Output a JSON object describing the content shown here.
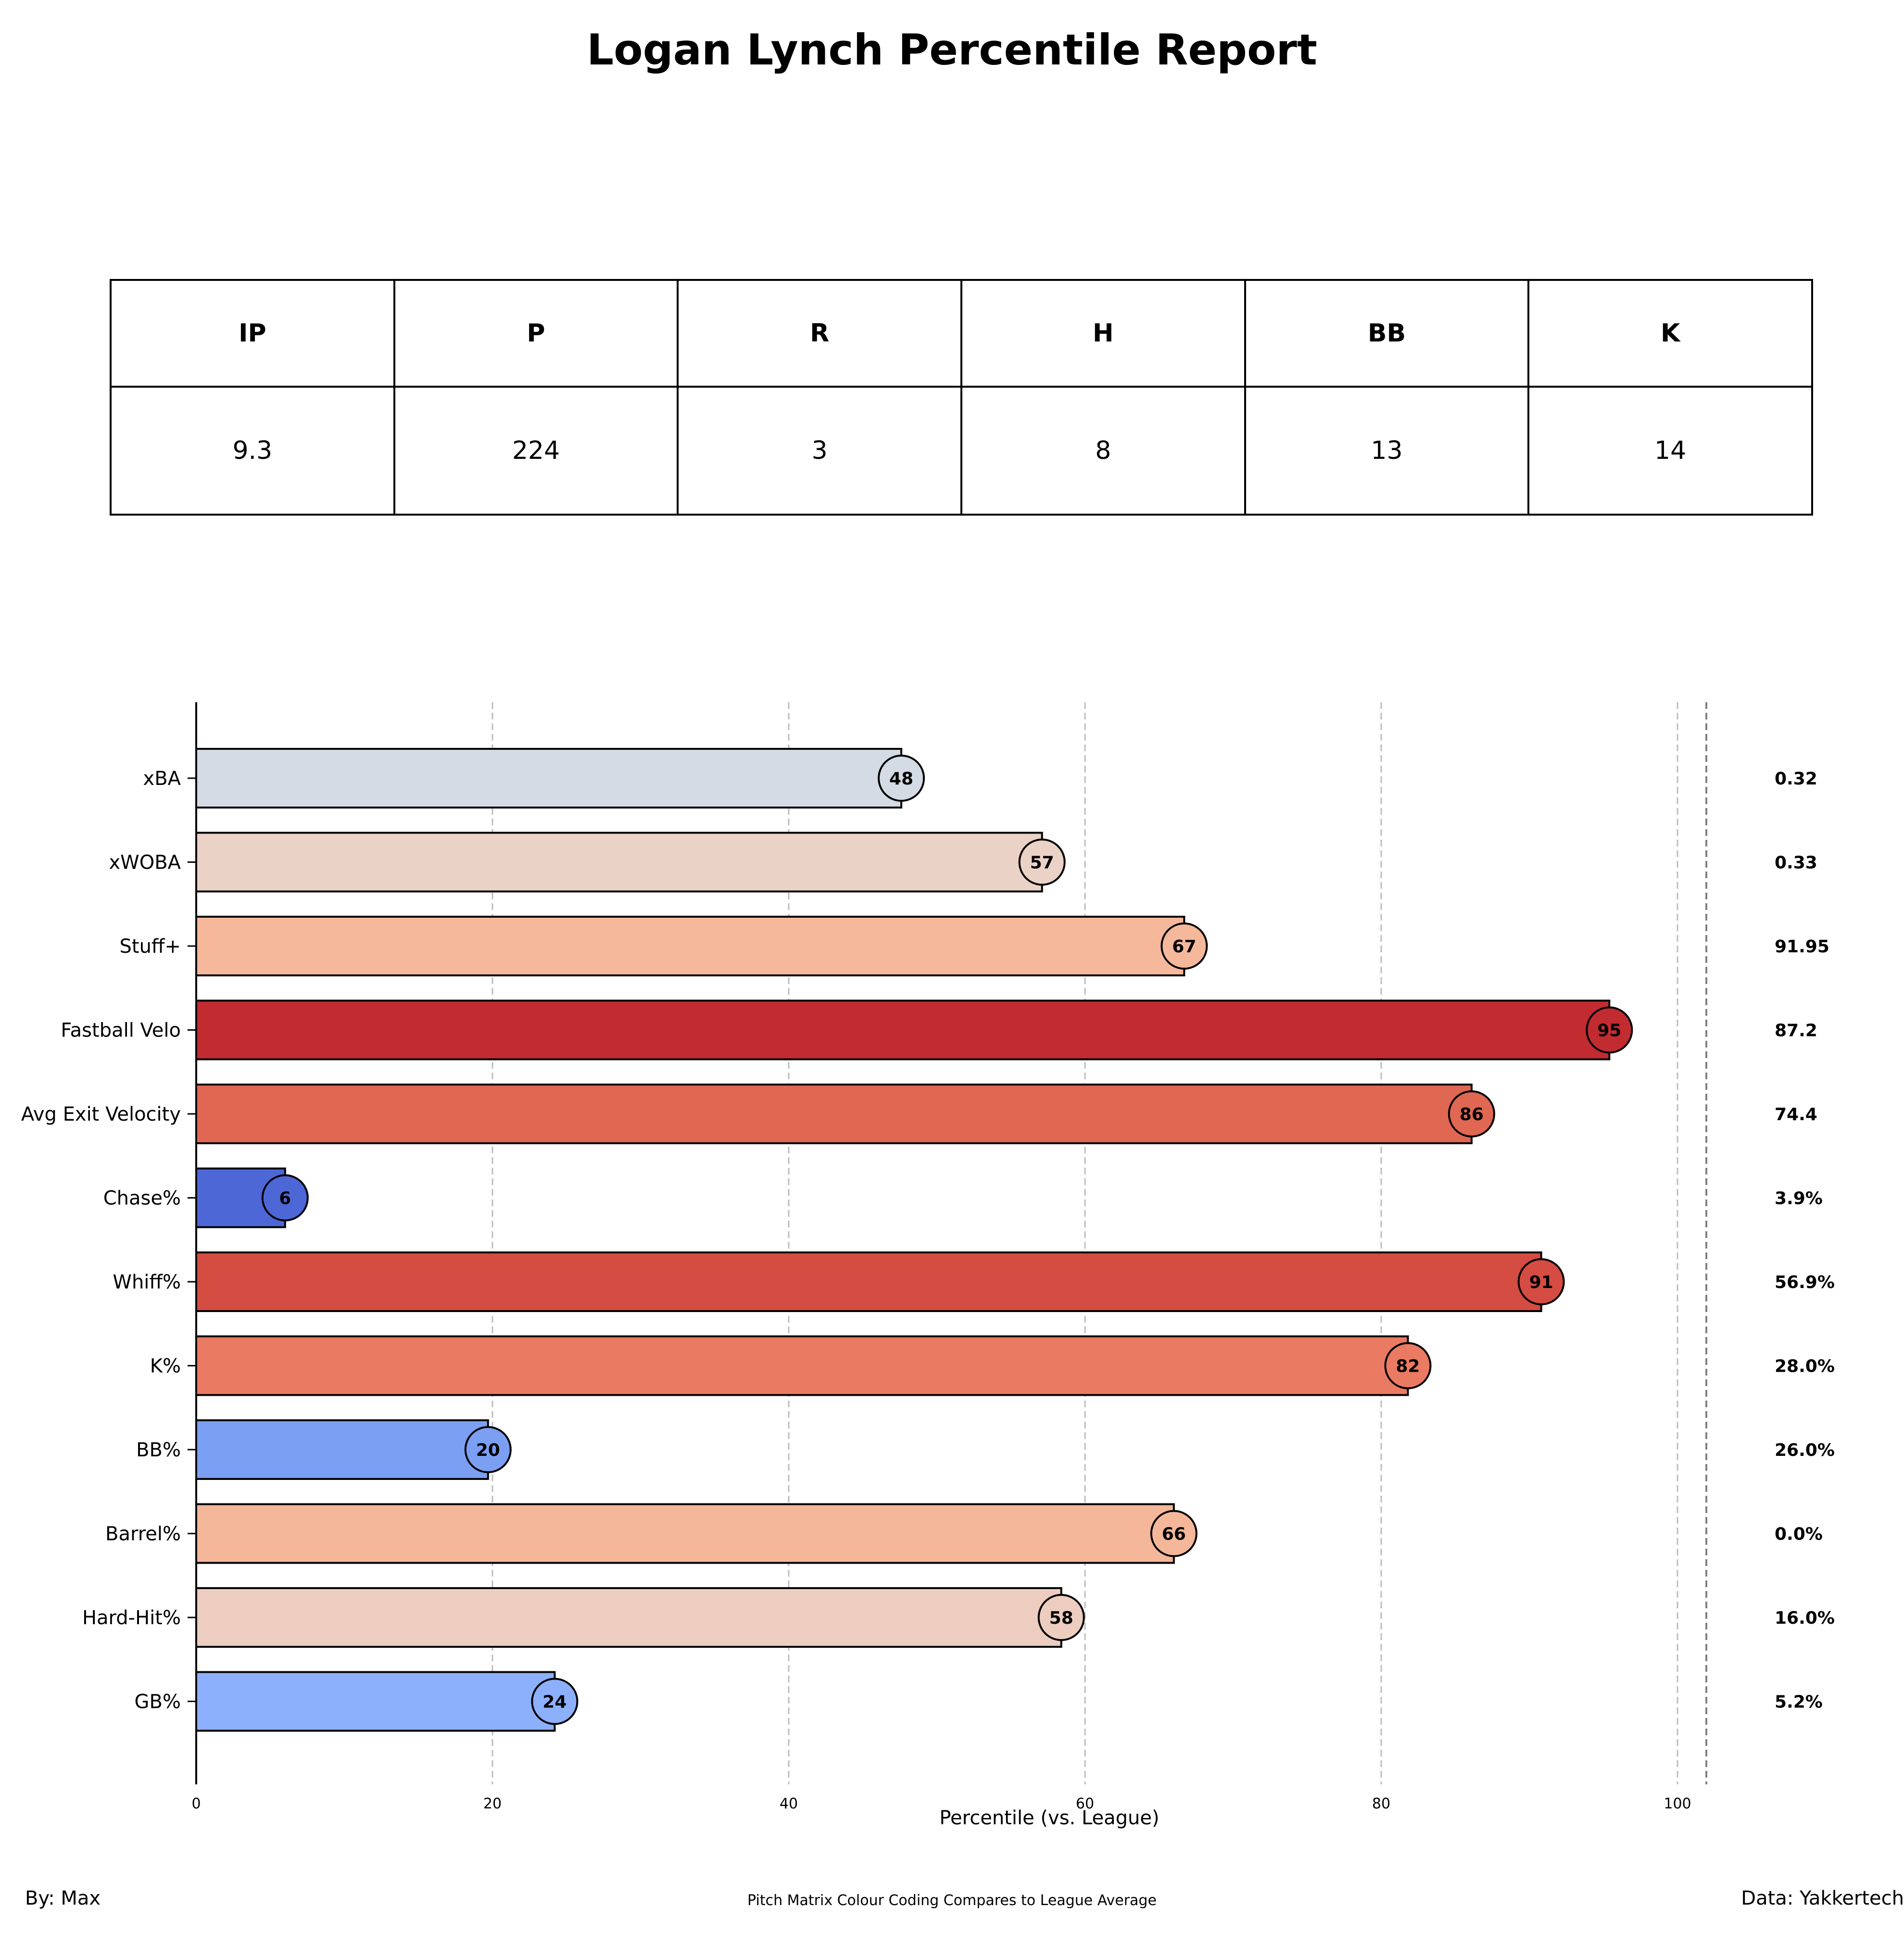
{
  "title": "Logan Lynch Percentile Report",
  "stats_table": {
    "headers": [
      "IP",
      "P",
      "R",
      "H",
      "BB",
      "K"
    ],
    "values": [
      "9.3",
      "224",
      "3",
      "8",
      "13",
      "14"
    ]
  },
  "chart_data": {
    "type": "bar",
    "orientation": "horizontal",
    "categories": [
      "xBA",
      "xWOBA",
      "Stuff+",
      "Fastball Velo",
      "Avg Exit Velocity",
      "Chase%",
      "Whiff%",
      "K%",
      "BB%",
      "Barrel%",
      "Hard-Hit%",
      "GB%"
    ],
    "values": [
      48,
      57,
      67,
      95,
      86,
      6,
      91,
      82,
      20,
      66,
      58,
      24
    ],
    "value_labels": [
      "48",
      "57",
      "67",
      "95",
      "86",
      "6",
      "91",
      "82",
      "20",
      "66",
      "58",
      "24"
    ],
    "bar_end": [
      47.6,
      57.1,
      66.7,
      95.4,
      86.1,
      6.0,
      90.8,
      81.8,
      19.7,
      66.0,
      58.4,
      24.2
    ],
    "raw_values": [
      "0.32",
      "0.33",
      "91.95",
      "87.2",
      "74.4",
      "3.9%",
      "56.9%",
      "28.0%",
      "26.0%",
      "0.0%",
      "16.0%",
      "5.2%"
    ],
    "colors": [
      "#d5dbe4",
      "#ebd2c6",
      "#f5b89b",
      "#c22c30",
      "#e06752",
      "#4e67d7",
      "#d44c42",
      "#ea7b62",
      "#7b9ff2",
      "#f4b799",
      "#eccdbf",
      "#8db0fd"
    ],
    "xlabel": "Percentile (vs. League)",
    "x_ticks": [
      "0",
      "20",
      "40",
      "60",
      "80",
      "100"
    ],
    "xlim": [
      0,
      102
    ],
    "grid": "vertical dashed"
  },
  "footer": {
    "left": "By: Max",
    "center": "Pitch Matrix Colour Coding Compares to League Average",
    "right": "Data: Yakkertech"
  }
}
